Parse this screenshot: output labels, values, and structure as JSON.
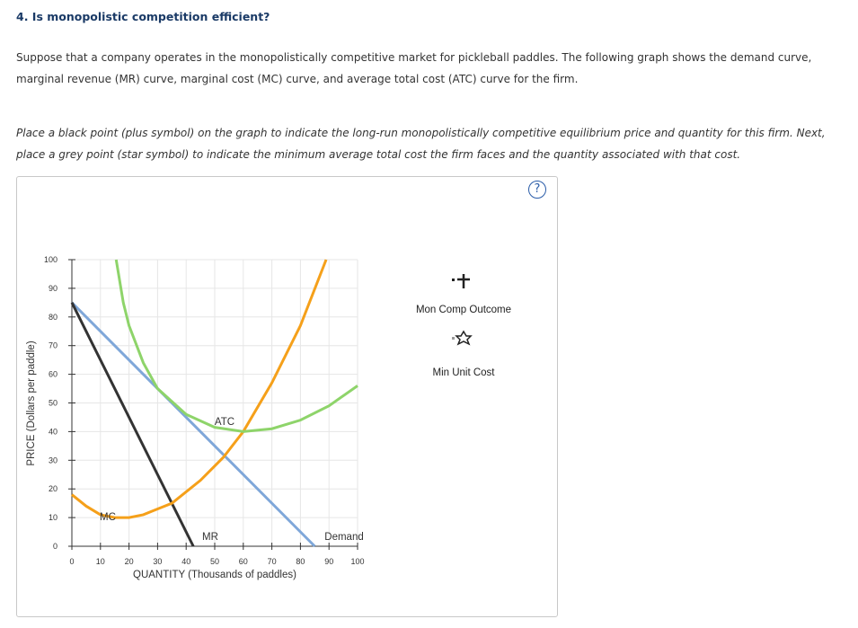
{
  "header": {
    "title": "4. Is monopolistic competition efficient?"
  },
  "intro": "Suppose that a company operates in the monopolistically competitive market for pickleball paddles. The following graph shows the demand curve, marginal revenue (MR) curve, marginal cost (MC) curve, and average total cost (ATC) curve for the firm.",
  "instructions": "Place a black point (plus symbol) on the graph to indicate the long-run monopolistically competitive equilibrium price and quantity for this firm. Next, place a grey point (star symbol) to indicate the minimum average total cost the firm faces and the quantity associated with that cost.",
  "help": "?",
  "legend": [
    "Mon Comp Outcome",
    "Min Unit Cost"
  ],
  "chart_data": {
    "type": "line",
    "x_label": "QUANTITY (Thousands of paddles)",
    "y_label": "PRICE (Dollars per paddle)",
    "xlim": [
      0,
      100
    ],
    "ylim": [
      0,
      100
    ],
    "xticks": [
      0,
      10,
      20,
      30,
      40,
      50,
      60,
      70,
      80,
      90,
      100
    ],
    "yticks": [
      0,
      10,
      20,
      30,
      40,
      50,
      60,
      70,
      80,
      90,
      100
    ],
    "grid": true,
    "series": [
      {
        "name": "Demand",
        "color": "#7fa7d9",
        "x": [
          0,
          85
        ],
        "values": [
          85,
          0
        ]
      },
      {
        "name": "MR",
        "color": "#333333",
        "x": [
          0,
          42.5
        ],
        "values": [
          85,
          0
        ]
      },
      {
        "name": "MC",
        "color": "#f5a01a",
        "x": [
          0,
          5,
          10,
          15,
          20,
          25,
          30,
          35,
          45,
          53,
          60,
          70,
          80,
          89
        ],
        "values": [
          18,
          14,
          11,
          10,
          10,
          11,
          13,
          15,
          23,
          31,
          40,
          57,
          77,
          100
        ]
      },
      {
        "name": "ATC",
        "color": "#8ed46a",
        "x": [
          15.5,
          18,
          20,
          25,
          30,
          40,
          50,
          60,
          70,
          80,
          90,
          100
        ],
        "values": [
          100,
          85,
          77,
          64,
          55,
          46,
          41.5,
          40,
          41,
          44,
          49,
          56
        ]
      }
    ]
  }
}
